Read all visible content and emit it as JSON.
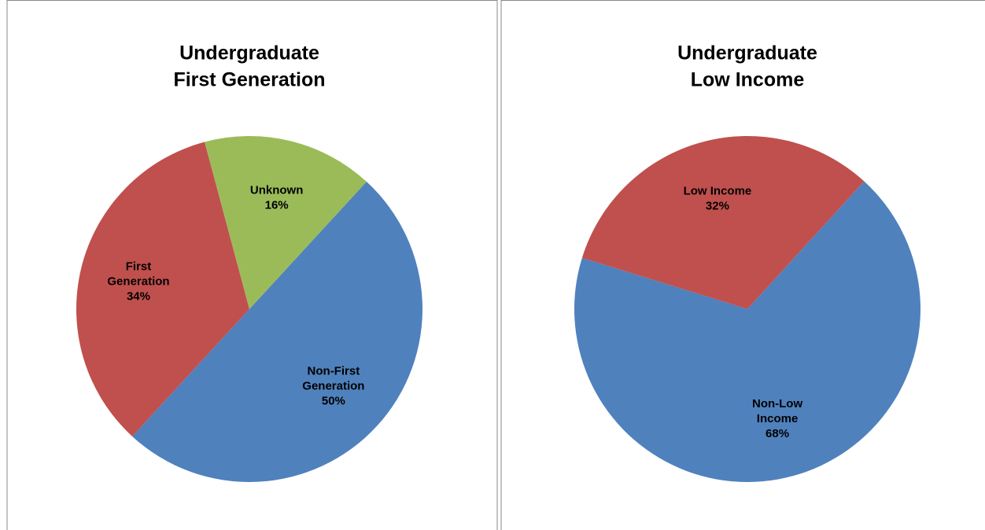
{
  "chart_data": [
    {
      "type": "pie",
      "title": [
        "Undergraduate",
        "First Generation"
      ],
      "categories": [
        "Non-First Generation",
        "First Generation",
        "Unknown"
      ],
      "values": [
        50,
        34,
        16
      ],
      "value_labels": [
        "50%",
        "34%",
        "16%"
      ],
      "colors": [
        "#4f81bd",
        "#c0504d",
        "#9bbb59"
      ],
      "startangle": 42.6
    },
    {
      "type": "pie",
      "title": [
        "Undergraduate",
        "Low Income"
      ],
      "categories": [
        "Non-Low Income",
        "Low Income"
      ],
      "values": [
        68,
        32
      ],
      "value_labels": [
        "68%",
        "32%"
      ],
      "colors": [
        "#4f81bd",
        "#c0504d"
      ],
      "startangle": 42.4
    }
  ]
}
